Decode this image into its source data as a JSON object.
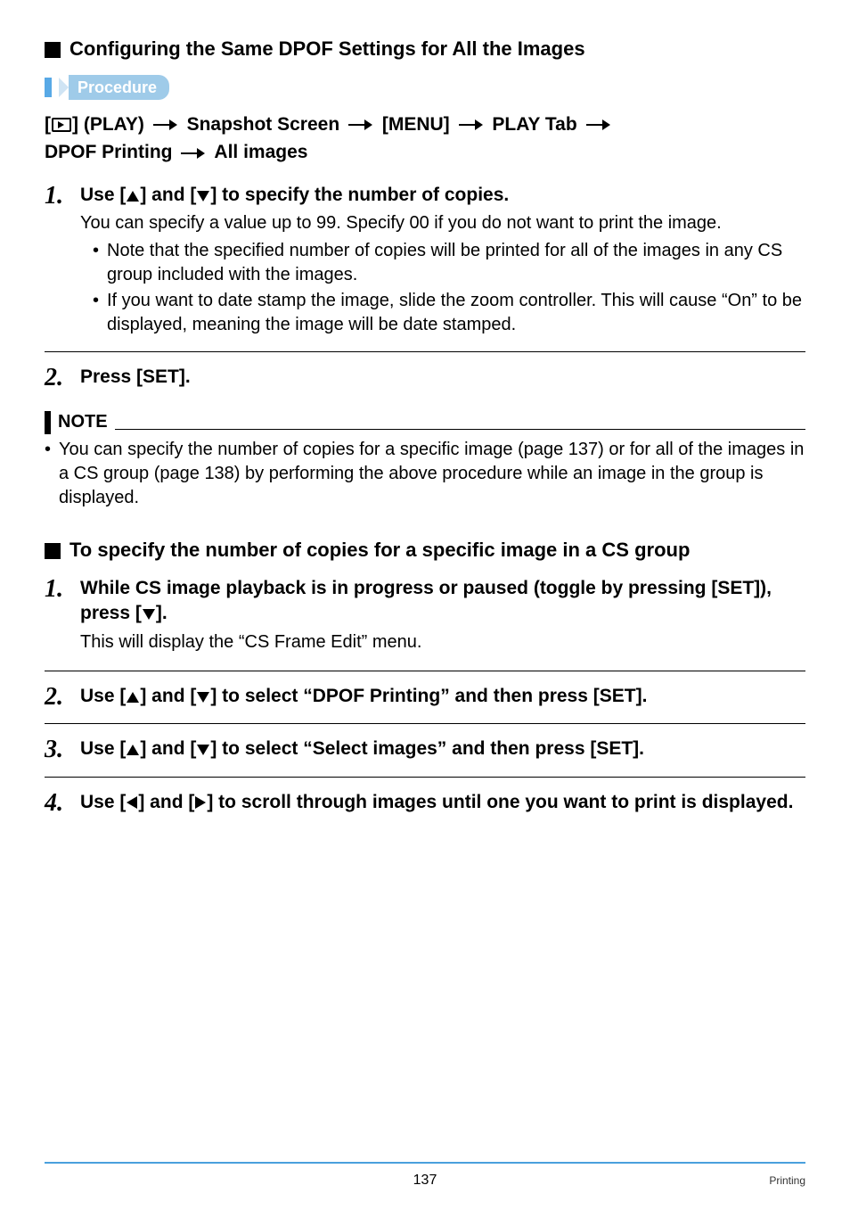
{
  "sec1": {
    "title": "Configuring the Same DPOF Settings for All the Images",
    "proc_label": "Procedure",
    "path_parts": {
      "p1": "] (PLAY)",
      "p2": "Snapshot Screen",
      "p3": "[MENU]",
      "p4": "PLAY Tab",
      "p5": "DPOF Printing",
      "p6": "All images"
    },
    "step1": {
      "num": "1.",
      "title_a": "Use [",
      "title_b": "] and [",
      "title_c": "] to specify the number of copies.",
      "desc": "You can specify a value up to 99. Specify 00 if you do not want to print the image.",
      "b1": "Note that the specified number of copies will be printed for all of the images in any CS group included with the images.",
      "b2": "If you want to date stamp the image, slide the zoom controller. This will cause “On” to be displayed, meaning the image will be date stamped."
    },
    "step2": {
      "num": "2.",
      "title": "Press [SET]."
    }
  },
  "note": {
    "label": "NOTE",
    "item": "You can specify the number of copies for a specific image (page 137) or for all of the images in a CS group (page 138) by performing the above procedure while an image in the group is displayed."
  },
  "sec2": {
    "title": "To specify the number of copies for a specific image in a CS group",
    "step1": {
      "num": "1.",
      "title_a": "While CS image playback is in progress or paused (toggle by pressing [SET]), press [",
      "title_b": "].",
      "desc": "This will display the “CS Frame Edit” menu."
    },
    "step2": {
      "num": "2.",
      "title_a": "Use [",
      "title_b": "] and [",
      "title_c": "] to select “DPOF Printing” and then press [SET]."
    },
    "step3": {
      "num": "3.",
      "title_a": "Use [",
      "title_b": "] and [",
      "title_c": "] to select “Select images” and then press [SET]."
    },
    "step4": {
      "num": "4.",
      "title_a": "Use [",
      "title_b": "] and [",
      "title_c": "] to scroll through images until one you want to print is displayed."
    }
  },
  "footer": {
    "page": "137",
    "section": "Printing"
  }
}
